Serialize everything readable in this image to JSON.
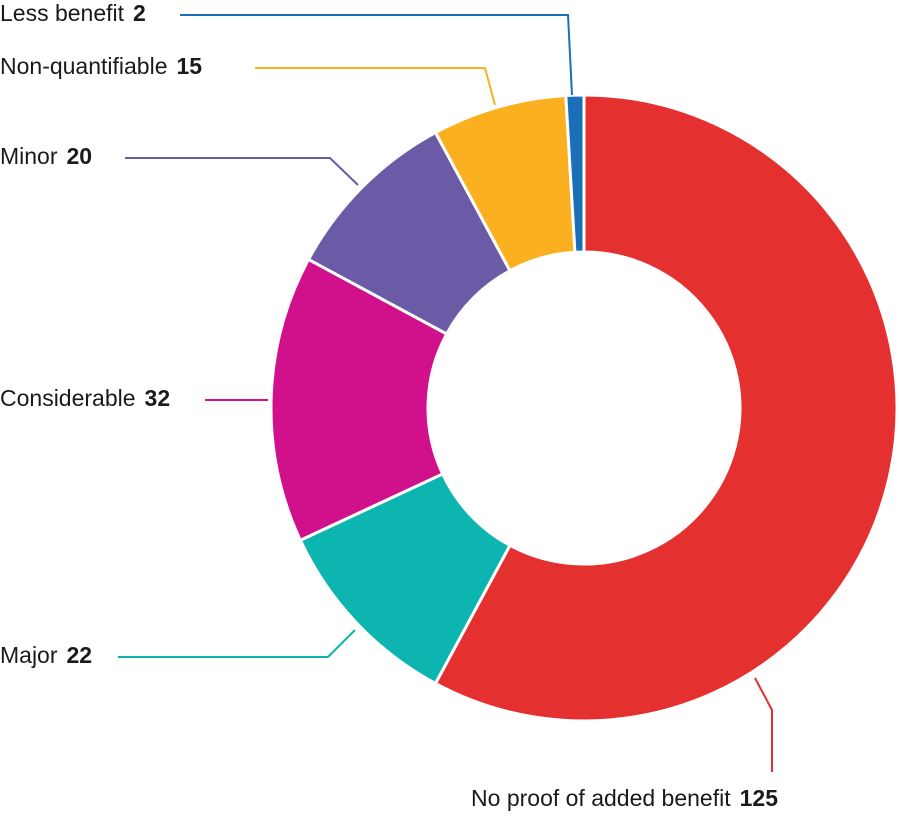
{
  "chart_data": {
    "type": "donut",
    "categories": [
      "No proof of added benefit",
      "Major",
      "Considerable",
      "Minor",
      "Non-quantifiable",
      "Less benefit"
    ],
    "values": [
      125,
      22,
      32,
      20,
      15,
      2
    ],
    "colors": [
      "#e53030",
      "#0db5b0",
      "#d1108b",
      "#6b5aa6",
      "#fbb01f",
      "#1a6fb8"
    ]
  }
}
